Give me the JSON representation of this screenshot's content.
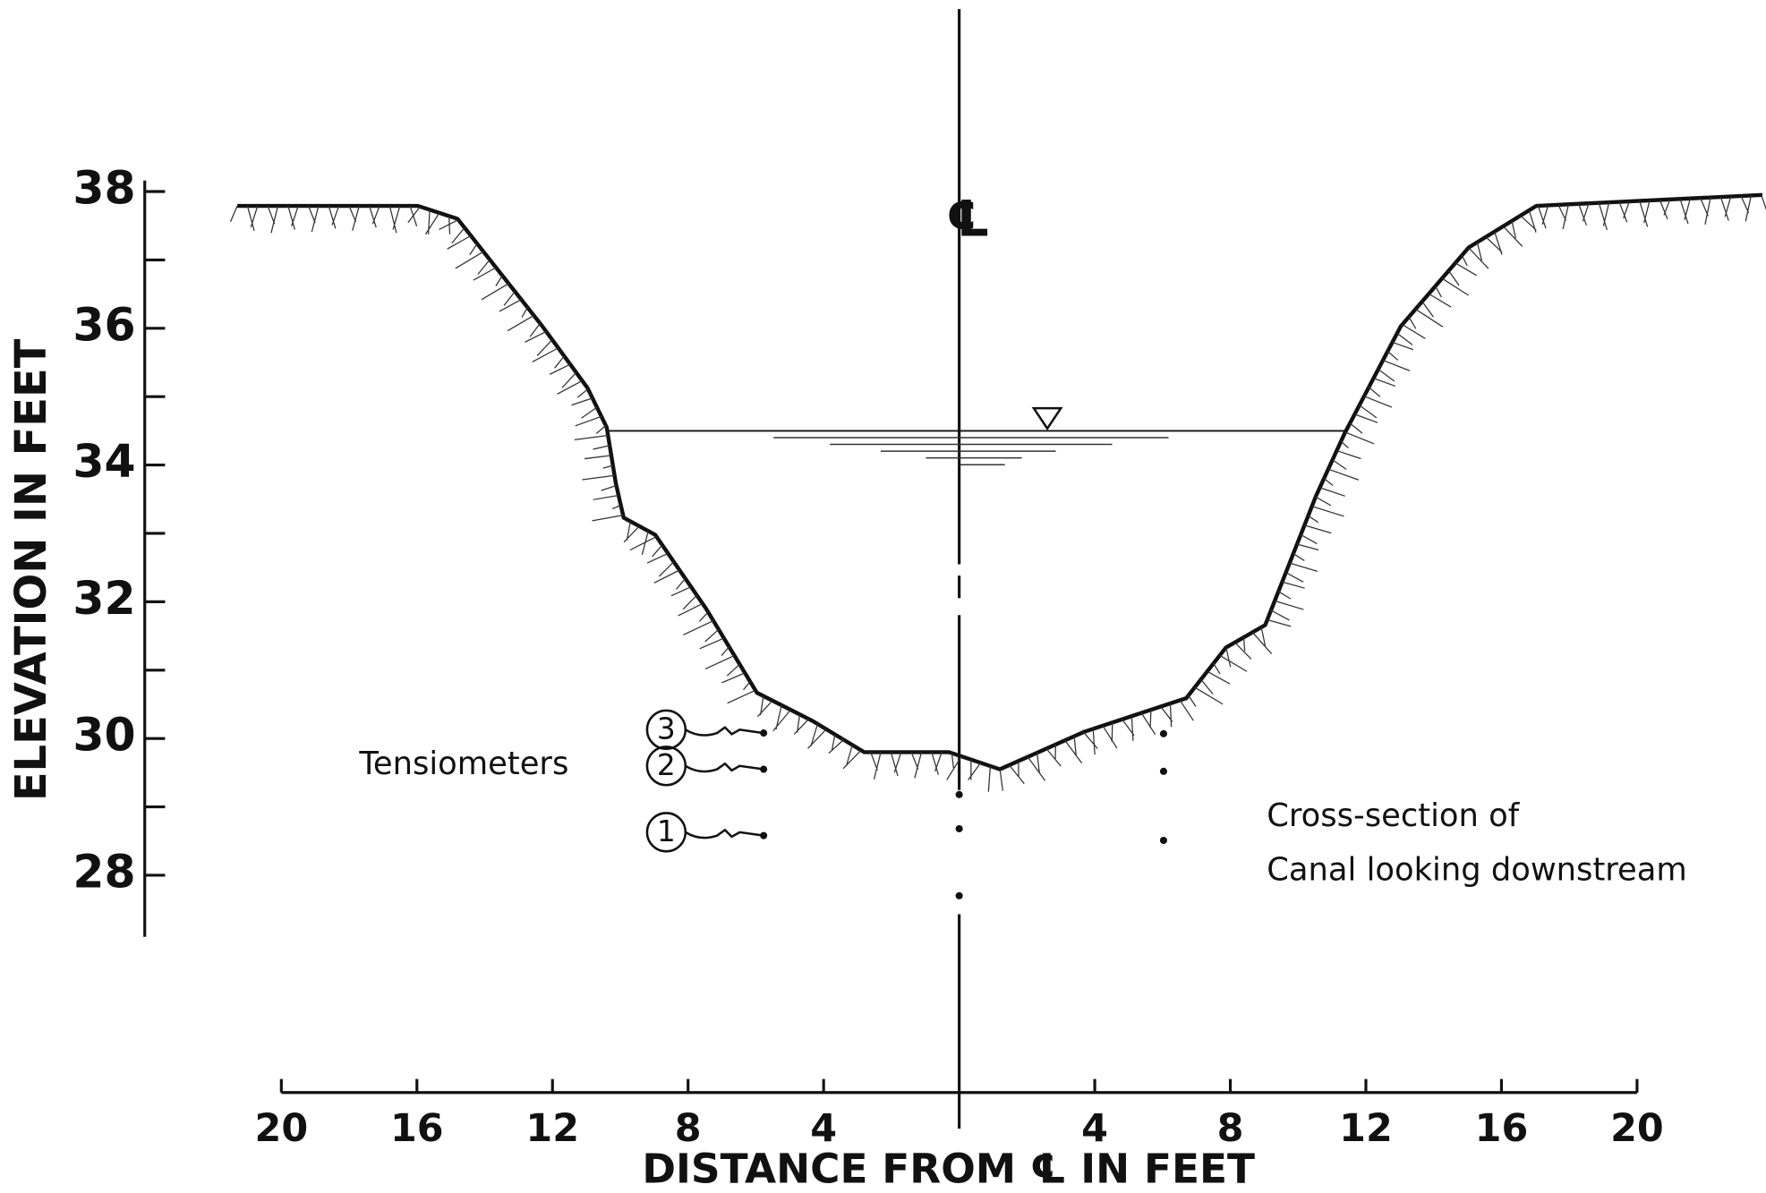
{
  "chart_data": {
    "type": "line",
    "xlabel": "DISTANCE FROM ℄ IN FEET",
    "ylabel": "ELEVATION IN FEET",
    "xlim": [
      -20,
      20
    ],
    "ylim": [
      27.1,
      38.16
    ],
    "xticks": [
      {
        "value": -20,
        "label": "20"
      },
      {
        "value": -16,
        "label": "16"
      },
      {
        "value": -12,
        "label": "12"
      },
      {
        "value": -8,
        "label": "8"
      },
      {
        "value": -4,
        "label": "4"
      },
      4,
      8,
      12,
      16,
      20
    ],
    "yticks": [
      28,
      30,
      32,
      34,
      36,
      38
    ],
    "yminor": [
      29,
      31,
      33,
      35,
      37
    ],
    "centerline_x": 0,
    "centerline_label": "℄",
    "series": [
      {
        "color": "#111111",
        "x": [
          -21.3,
          -15.97,
          -14.8,
          -12.3,
          -10.97,
          -10.4,
          -10.13,
          -9.9,
          -8.97,
          -7.47,
          -5.97,
          -4.3,
          -2.8,
          -0.3,
          1.2,
          3.7,
          6.7,
          7.87,
          9.03,
          10.53,
          11.37,
          13.03,
          15.03,
          17.03,
          23.7
        ],
        "values": [
          37.79,
          37.79,
          37.6,
          36.03,
          35.13,
          34.55,
          33.73,
          33.23,
          32.98,
          31.9,
          30.67,
          30.25,
          29.8,
          29.8,
          29.55,
          30.1,
          30.59,
          31.33,
          31.66,
          33.55,
          34.46,
          36.03,
          37.18,
          37.79,
          37.95
        ]
      },
      {
        "color": "#111111",
        "x": [
          -10.4,
          11.37
        ],
        "values": [
          34.5,
          34.5
        ]
      }
    ],
    "water_symbol_x": 2.6,
    "tensiometers": {
      "x": [
        -5.77,
        -5.77,
        -5.77,
        0,
        0,
        0,
        6.03,
        6.03,
        6.03
      ],
      "values": [
        30.08,
        29.55,
        28.58,
        29.18,
        28.68,
        27.7,
        30.07,
        29.52,
        28.51
      ],
      "labels": [
        "3",
        "2",
        "1"
      ],
      "title": "Tensiometers"
    },
    "annotation": [
      "Cross-section of",
      "Canal looking downstream"
    ]
  }
}
